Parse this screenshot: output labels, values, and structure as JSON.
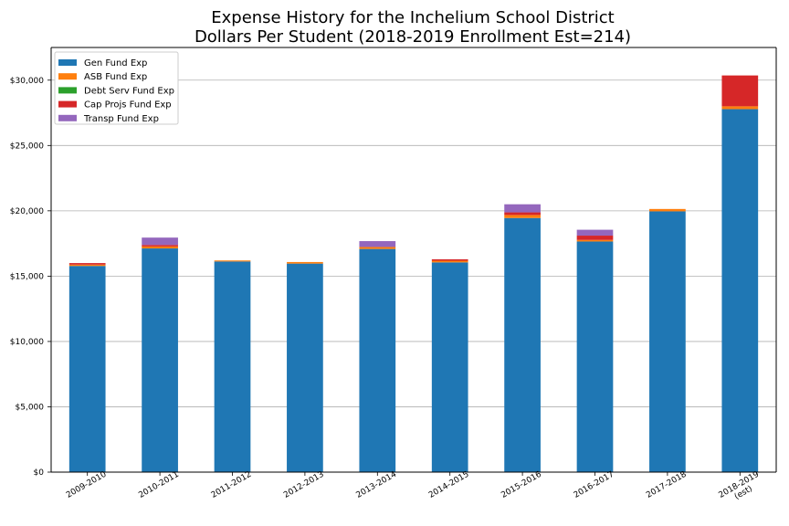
{
  "chart_data": {
    "type": "bar",
    "stacked": true,
    "title": "Expense History for the Inchelium School District",
    "subtitle": "Dollars Per Student (2018-2019 Enrollment Est=214)",
    "xlabel": "",
    "ylabel": "",
    "ylim": [
      0,
      32500
    ],
    "grid": "y",
    "legend_position": "top-left",
    "categories": [
      "2009-2010",
      "2010-2011",
      "2011-2012",
      "2012-2013",
      "2013-2014",
      "2014-2015",
      "2015-2016",
      "2016-2017",
      "2017-2018",
      "2018-2019\n(est)"
    ],
    "yticks": [
      "$0",
      "$5,000",
      "$10,000",
      "$15,000",
      "$20,000",
      "$25,000",
      "$30,000"
    ],
    "series": [
      {
        "name": "Gen Fund Exp",
        "color": "#1f77b4",
        "values": [
          15780,
          17120,
          16120,
          15960,
          17080,
          16050,
          19450,
          17650,
          19960,
          27780
        ]
      },
      {
        "name": "ASB Fund Exp",
        "color": "#ff7f0e",
        "values": [
          100,
          150,
          80,
          120,
          150,
          130,
          230,
          120,
          180,
          220
        ]
      },
      {
        "name": "Debt Serv Fund Exp",
        "color": "#2ca02c",
        "values": [
          0,
          0,
          0,
          0,
          0,
          0,
          0,
          0,
          0,
          0
        ]
      },
      {
        "name": "Cap Projs Fund Exp",
        "color": "#d62728",
        "values": [
          120,
          120,
          0,
          0,
          0,
          110,
          200,
          330,
          0,
          2360
        ]
      },
      {
        "name": "Transp Fund Exp",
        "color": "#9467bd",
        "values": [
          0,
          560,
          0,
          0,
          450,
          0,
          620,
          450,
          0,
          0
        ]
      }
    ]
  }
}
